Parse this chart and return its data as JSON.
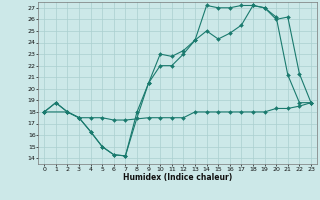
{
  "xlabel": "Humidex (Indice chaleur)",
  "bg_color": "#cce8e8",
  "line_color": "#1a7a6e",
  "grid_color": "#aacfcf",
  "xlim": [
    -0.5,
    23.5
  ],
  "ylim": [
    13.5,
    27.5
  ],
  "xticks": [
    0,
    1,
    2,
    3,
    4,
    5,
    6,
    7,
    8,
    9,
    10,
    11,
    12,
    13,
    14,
    15,
    16,
    17,
    18,
    19,
    20,
    21,
    22,
    23
  ],
  "yticks": [
    14,
    15,
    16,
    17,
    18,
    19,
    20,
    21,
    22,
    23,
    24,
    25,
    26,
    27
  ],
  "series1_x": [
    0,
    1,
    2,
    3,
    4,
    5,
    6,
    7,
    8,
    9,
    10,
    11,
    12,
    13,
    14,
    15,
    16,
    17,
    18,
    19,
    20,
    21,
    22,
    23
  ],
  "series1_y": [
    18.0,
    18.8,
    18.0,
    17.5,
    16.3,
    15.0,
    14.3,
    14.2,
    18.0,
    20.5,
    23.0,
    22.8,
    23.3,
    24.2,
    27.2,
    27.0,
    27.0,
    27.2,
    27.2,
    27.0,
    26.2,
    21.2,
    18.8,
    18.8
  ],
  "series2_x": [
    0,
    2,
    3,
    4,
    5,
    6,
    7,
    8,
    9,
    10,
    11,
    12,
    13,
    14,
    15,
    16,
    17,
    18,
    19,
    20,
    21,
    22,
    23
  ],
  "series2_y": [
    18.0,
    18.0,
    17.5,
    16.3,
    15.0,
    14.3,
    14.2,
    17.5,
    20.5,
    22.0,
    22.0,
    23.0,
    24.2,
    25.0,
    24.3,
    24.8,
    25.5,
    27.2,
    27.0,
    26.0,
    26.2,
    21.3,
    18.8
  ],
  "series3_x": [
    0,
    1,
    2,
    3,
    4,
    5,
    6,
    7,
    9,
    10,
    11,
    12,
    13,
    14,
    15,
    16,
    17,
    18,
    19,
    20,
    21,
    22,
    23
  ],
  "series3_y": [
    18.0,
    18.8,
    18.0,
    17.5,
    17.5,
    17.5,
    17.3,
    17.3,
    17.5,
    17.5,
    17.5,
    17.5,
    18.0,
    18.0,
    18.0,
    18.0,
    18.0,
    18.0,
    18.0,
    18.3,
    18.3,
    18.5,
    18.8
  ]
}
